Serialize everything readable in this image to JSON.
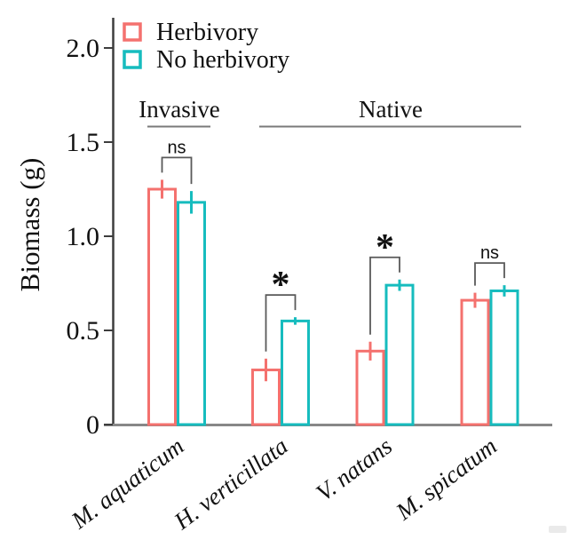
{
  "chart_data": {
    "type": "bar",
    "title": "",
    "ylabel": "Biomass (g)",
    "xlabel": "",
    "ylim": [
      0,
      2.0
    ],
    "yticks": [
      0,
      0.5,
      1.0,
      1.5,
      2.0
    ],
    "ytick_labels": [
      "0",
      "0.5",
      "1.0",
      "1.5",
      "2.0"
    ],
    "grid": false,
    "bar_style": "open-outline",
    "categories": [
      "M. aquaticum",
      "H. verticillata",
      "V. natans",
      "M. spicatum"
    ],
    "series": [
      {
        "name": "Herbivory",
        "color": "#f4716e",
        "values": [
          1.25,
          0.29,
          0.39,
          0.66
        ],
        "errors": [
          0.05,
          0.06,
          0.05,
          0.04
        ]
      },
      {
        "name": "No herbivory",
        "color": "#16bcbe",
        "values": [
          1.18,
          0.55,
          0.74,
          0.71
        ],
        "errors": [
          0.06,
          0.02,
          0.03,
          0.03
        ]
      }
    ],
    "legend": {
      "position": "top-left",
      "entries": [
        {
          "label": "Herbivory",
          "color": "#f4716e"
        },
        {
          "label": "No herbivory",
          "color": "#16bcbe"
        }
      ]
    },
    "group_headers": [
      {
        "label": "Invasive",
        "category_start": 0,
        "category_end": 0
      },
      {
        "label": "Native",
        "category_start": 1,
        "category_end": 3
      }
    ],
    "significance": [
      {
        "category": "M. aquaticum",
        "label": "ns"
      },
      {
        "category": "H. verticillata",
        "label": "*"
      },
      {
        "category": "V. natans",
        "label": "*"
      },
      {
        "category": "M. spicatum",
        "label": "ns"
      }
    ],
    "colors": {
      "axis": "#3d3d3d",
      "baseline": "#888888",
      "bracket": "#595959",
      "header_rule": "#7a7a7a",
      "text": "#111111"
    }
  }
}
